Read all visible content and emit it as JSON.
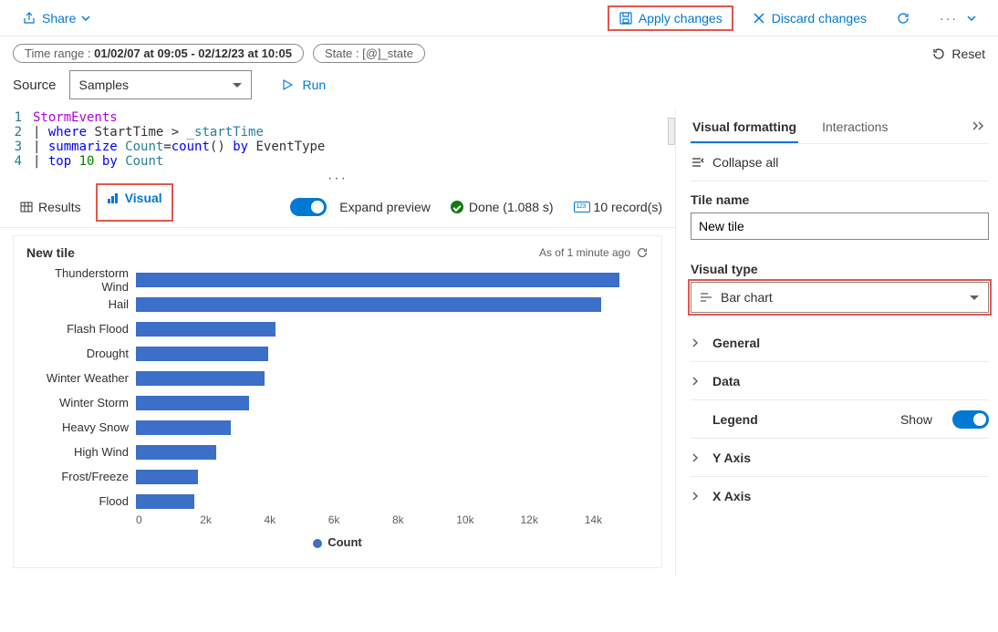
{
  "toolbar": {
    "share": "Share",
    "apply": "Apply changes",
    "discard": "Discard changes"
  },
  "filters": {
    "timerange_prefix": "Time range : ",
    "timerange_value": "01/02/07 at 09:05 - 02/12/23 at 10:05",
    "state_prefix": "State : ",
    "state_value": "[@]_state",
    "reset": "Reset"
  },
  "source": {
    "label": "Source",
    "selected": "Samples",
    "run": "Run"
  },
  "editor": {
    "lines": [
      {
        "n": "1",
        "html": "StormEvents"
      },
      {
        "n": "2",
        "html": "| where StartTime > _startTime"
      },
      {
        "n": "3",
        "html": "| summarize Count=count() by EventType"
      },
      {
        "n": "4",
        "html": "| top 10 by Count"
      }
    ]
  },
  "result_tabs": {
    "results": "Results",
    "visual": "Visual",
    "expand": "Expand preview",
    "done": "Done (1.088 s)",
    "records": "10 record(s)"
  },
  "chart": {
    "title": "New tile",
    "asof": "As of 1 minute ago",
    "xmax": 14000,
    "xticks": [
      "0",
      "2k",
      "4k",
      "6k",
      "8k",
      "10k",
      "12k",
      "14k"
    ],
    "legend": "Count",
    "bar_color": "#3b6fc8",
    "bars": [
      {
        "label": "Thunderstorm Wind",
        "value": 13200
      },
      {
        "label": "Hail",
        "value": 12700
      },
      {
        "label": "Flash Flood",
        "value": 3800
      },
      {
        "label": "Drought",
        "value": 3600
      },
      {
        "label": "Winter Weather",
        "value": 3500
      },
      {
        "label": "Winter Storm",
        "value": 3100
      },
      {
        "label": "Heavy Snow",
        "value": 2600
      },
      {
        "label": "High Wind",
        "value": 2200
      },
      {
        "label": "Frost/Freeze",
        "value": 1700
      },
      {
        "label": "Flood",
        "value": 1600
      }
    ]
  },
  "rightpanel": {
    "tabs": {
      "visual_formatting": "Visual formatting",
      "interactions": "Interactions"
    },
    "collapse_all": "Collapse all",
    "tile_name_label": "Tile name",
    "tile_name_value": "New tile",
    "visual_type_label": "Visual type",
    "visual_type_value": "Bar chart",
    "accordion": {
      "general": "General",
      "data": "Data",
      "legend": "Legend",
      "legend_show": "Show",
      "yaxis": "Y Axis",
      "xaxis": "X Axis"
    }
  }
}
